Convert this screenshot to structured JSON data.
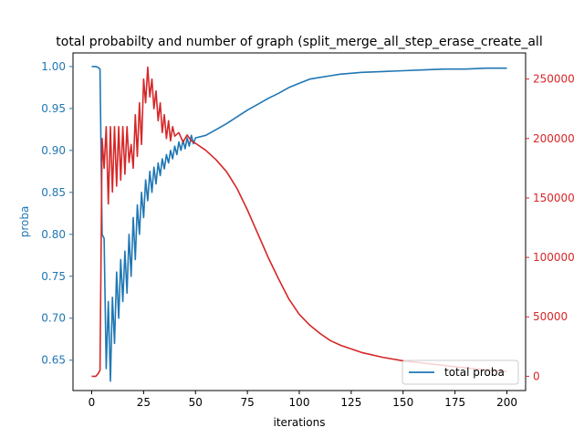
{
  "chart_data": {
    "type": "line",
    "title": "total probabilty and number of graph (split_merge_all_step_erase_create_all",
    "xlabel": "iterations",
    "ylabel": "proba",
    "y2label": "",
    "xlim": [
      -9,
      209
    ],
    "ylim": [
      0.6138,
      1.0162
    ],
    "y2lim": [
      -12000,
      272000
    ],
    "xticks": [
      0,
      25,
      50,
      75,
      100,
      125,
      150,
      175,
      200
    ],
    "xtick_labels": [
      "0",
      "25",
      "50",
      "75",
      "100",
      "125",
      "150",
      "175",
      "200"
    ],
    "yticks": [
      0.65,
      0.7,
      0.75,
      0.8,
      0.85,
      0.9,
      0.95,
      1.0
    ],
    "ytick_labels": [
      "0.65",
      "0.70",
      "0.75",
      "0.80",
      "0.85",
      "0.90",
      "0.95",
      "1.00"
    ],
    "y2ticks": [
      0,
      50000,
      100000,
      150000,
      200000,
      250000
    ],
    "y2tick_labels": [
      "0",
      "50000",
      "100000",
      "150000",
      "200000",
      "250000"
    ],
    "grid": false,
    "legend_position": "lower-right",
    "colors": {
      "proba": "#1f77b4",
      "count": "#d62728"
    },
    "series": [
      {
        "name": "total proba",
        "axis": "left",
        "x": [
          0,
          1,
          2,
          3,
          4,
          5,
          6,
          7,
          8,
          9,
          10,
          11,
          12,
          13,
          14,
          15,
          16,
          17,
          18,
          19,
          20,
          21,
          22,
          23,
          24,
          25,
          26,
          27,
          28,
          29,
          30,
          31,
          32,
          33,
          34,
          35,
          36,
          37,
          38,
          39,
          40,
          41,
          42,
          43,
          44,
          45,
          46,
          47,
          48,
          49,
          50,
          55,
          60,
          65,
          70,
          75,
          80,
          85,
          90,
          95,
          100,
          105,
          110,
          115,
          120,
          125,
          130,
          140,
          150,
          160,
          170,
          180,
          190,
          200
        ],
        "y": [
          1.0,
          1.0,
          1.0,
          0.999,
          0.997,
          0.8,
          0.795,
          0.64,
          0.72,
          0.625,
          0.725,
          0.67,
          0.755,
          0.7,
          0.77,
          0.72,
          0.78,
          0.73,
          0.8,
          0.75,
          0.82,
          0.77,
          0.835,
          0.8,
          0.85,
          0.82,
          0.865,
          0.84,
          0.875,
          0.85,
          0.88,
          0.86,
          0.885,
          0.87,
          0.89,
          0.878,
          0.895,
          0.885,
          0.9,
          0.89,
          0.905,
          0.895,
          0.91,
          0.9,
          0.912,
          0.902,
          0.915,
          0.905,
          0.918,
          0.908,
          0.915,
          0.918,
          0.925,
          0.932,
          0.94,
          0.948,
          0.955,
          0.962,
          0.968,
          0.975,
          0.98,
          0.985,
          0.987,
          0.989,
          0.991,
          0.992,
          0.993,
          0.994,
          0.995,
          0.996,
          0.997,
          0.997,
          0.998,
          0.998
        ]
      },
      {
        "name": "",
        "axis": "right",
        "x": [
          0,
          1,
          2,
          3,
          4,
          5,
          6,
          7,
          8,
          9,
          10,
          11,
          12,
          13,
          14,
          15,
          16,
          17,
          18,
          19,
          20,
          21,
          22,
          23,
          24,
          25,
          26,
          27,
          28,
          29,
          30,
          31,
          32,
          33,
          34,
          35,
          36,
          37,
          38,
          39,
          40,
          42,
          44,
          46,
          48,
          50,
          55,
          60,
          65,
          70,
          75,
          80,
          85,
          90,
          95,
          100,
          105,
          110,
          115,
          120,
          125,
          130,
          140,
          150,
          160,
          170,
          180,
          190,
          200
        ],
        "y": [
          0,
          0,
          0,
          2000,
          5000,
          200000,
          175000,
          210000,
          145000,
          210000,
          155000,
          210000,
          160000,
          210000,
          165000,
          210000,
          170000,
          210000,
          180000,
          195000,
          175000,
          220000,
          185000,
          230000,
          195000,
          250000,
          230000,
          260000,
          235000,
          250000,
          225000,
          240000,
          215000,
          230000,
          205000,
          220000,
          200000,
          215000,
          198000,
          210000,
          202000,
          205000,
          197000,
          203000,
          198000,
          196000,
          190000,
          182000,
          172000,
          158000,
          140000,
          120000,
          100000,
          82000,
          65000,
          52000,
          43000,
          36000,
          30000,
          26000,
          23000,
          20000,
          16000,
          13000,
          11000,
          9000,
          7000,
          5500,
          4000
        ]
      }
    ]
  }
}
